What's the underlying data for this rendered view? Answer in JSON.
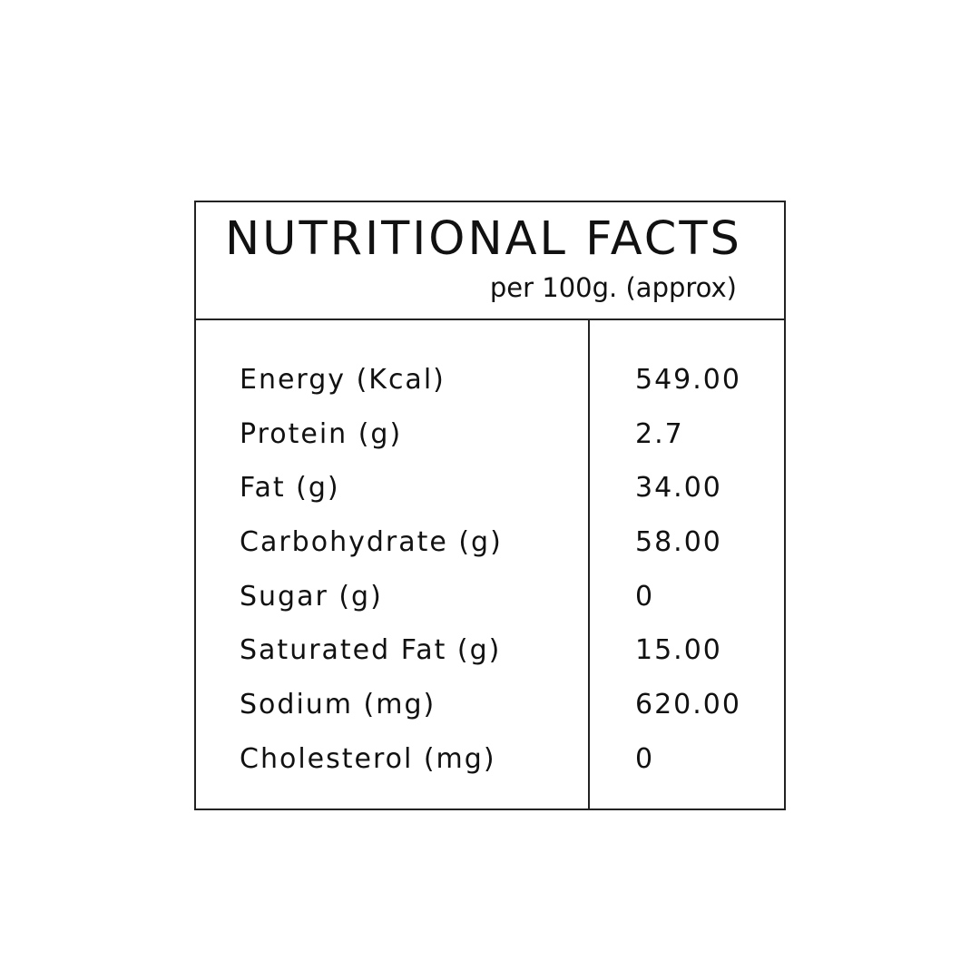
{
  "panel": {
    "title": "NUTRITIONAL FACTS",
    "subtitle": "per 100g. (approx)"
  },
  "nutrients": [
    {
      "label": "Energy (Kcal)",
      "value": "549.00"
    },
    {
      "label": "Protein (g)",
      "value": "2.7"
    },
    {
      "label": "Fat (g)",
      "value": "34.00"
    },
    {
      "label": "Carbohydrate (g)",
      "value": "58.00"
    },
    {
      "label": "Sugar (g)",
      "value": "0"
    },
    {
      "label": "Saturated Fat (g)",
      "value": "15.00"
    },
    {
      "label": "Sodium (mg)",
      "value": "620.00"
    },
    {
      "label": "Cholesterol (mg)",
      "value": "0"
    }
  ]
}
